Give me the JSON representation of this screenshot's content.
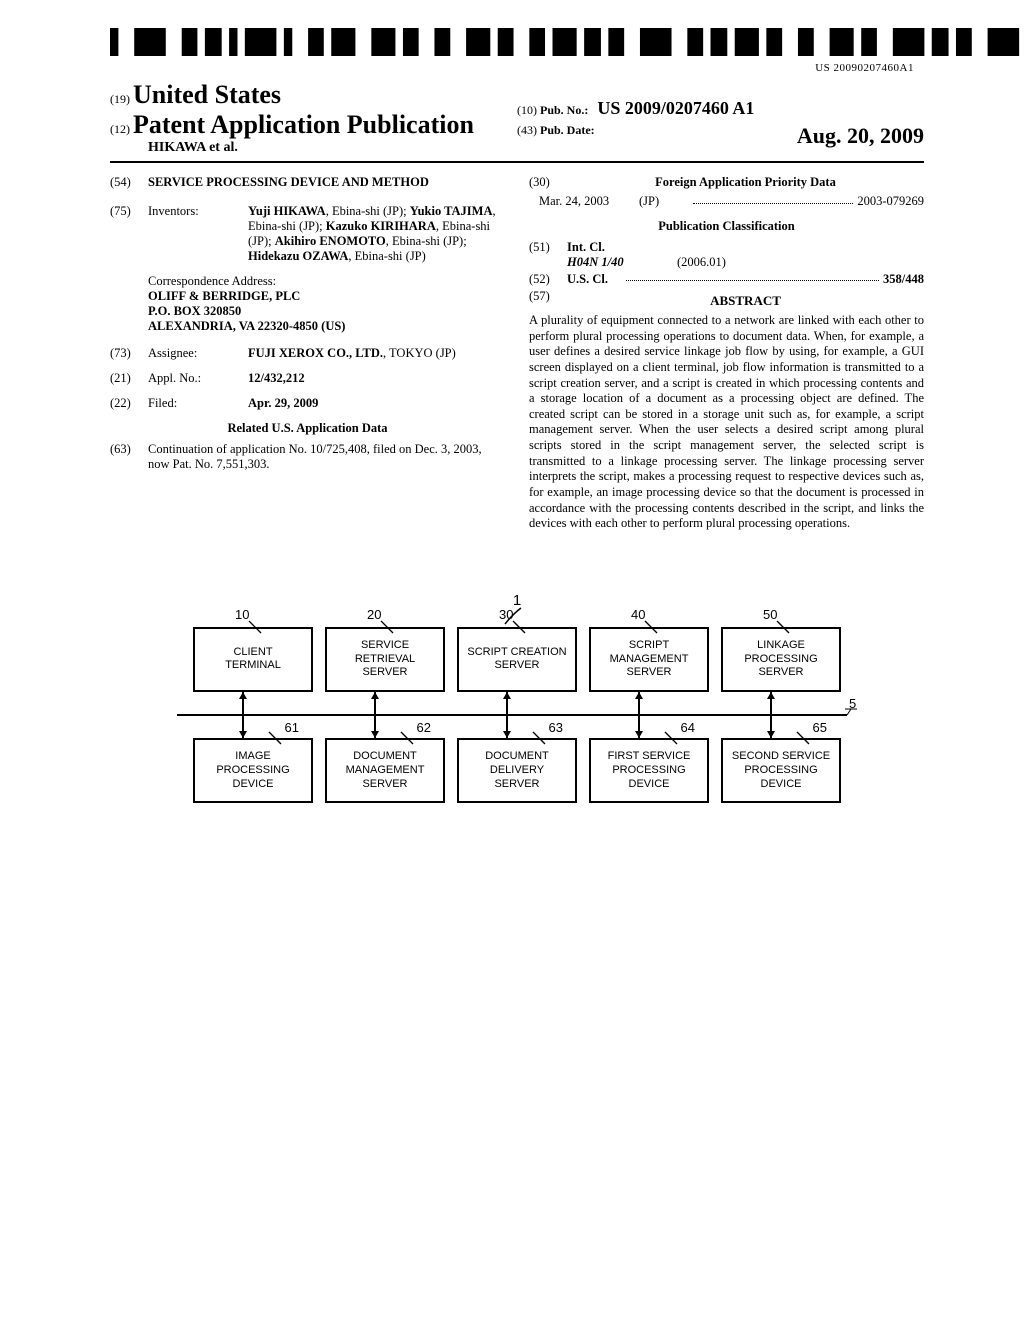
{
  "barcode_number": "US 20090207460A1",
  "header": {
    "country_code": "(19)",
    "country": "United States",
    "kind_code": "(12)",
    "kind": "Patent Application Publication",
    "author_line": "HIKAWA et al.",
    "pubno_code": "(10)",
    "pubno_label": "Pub. No.:",
    "pubno": "US 2009/0207460 A1",
    "pubdate_code": "(43)",
    "pubdate_label": "Pub. Date:",
    "pubdate": "Aug. 20, 2009"
  },
  "left": {
    "f54_code": "(54)",
    "f54_title": "SERVICE PROCESSING DEVICE AND METHOD",
    "f75_code": "(75)",
    "f75_label": "Inventors:",
    "f75_body_html": "Yuji HIKAWA, Ebina-shi (JP); Yukio TAJIMA, Ebina-shi (JP); Kazuko KIRIHARA, Ebina-shi (JP); Akihiro ENOMOTO, Ebina-shi (JP); Hidekazu OZAWA, Ebina-shi (JP)",
    "corr_label": "Correspondence Address:",
    "corr_line1": "OLIFF & BERRIDGE, PLC",
    "corr_line2": "P.O. BOX 320850",
    "corr_line3": "ALEXANDRIA, VA 22320-4850 (US)",
    "f73_code": "(73)",
    "f73_label": "Assignee:",
    "f73_body": "FUJI XEROX CO., LTD., TOKYO (JP)",
    "f21_code": "(21)",
    "f21_label": "Appl. No.:",
    "f21_val": "12/432,212",
    "f22_code": "(22)",
    "f22_label": "Filed:",
    "f22_val": "Apr. 29, 2009",
    "related_header": "Related U.S. Application Data",
    "f63_code": "(63)",
    "f63_body": "Continuation of application No. 10/725,408, filed on Dec. 3, 2003, now Pat. No. 7,551,303."
  },
  "right": {
    "f30_code": "(30)",
    "f30_header": "Foreign Application Priority Data",
    "priority_date": "Mar. 24, 2003",
    "priority_country": "(JP)",
    "priority_num": "2003-079269",
    "pubclass_header": "Publication Classification",
    "f51_code": "(51)",
    "f51_label": "Int. Cl.",
    "f51_class": "H04N 1/40",
    "f51_date": "(2006.01)",
    "f52_code": "(52)",
    "f52_label": "U.S. Cl.",
    "f52_val": "358/448",
    "f57_code": "(57)",
    "abstract_title": "ABSTRACT",
    "abstract_text": "A plurality of equipment connected to a network are linked with each other to perform plural processing operations to document data. When, for example, a user defines a desired service linkage job flow by using, for example, a GUI screen displayed on a client terminal, job flow information is transmitted to a script creation server, and a script is created in which processing contents and a storage location of a document as a processing object are defined. The created script can be stored in a storage unit such as, for example, a script management server. When the user selects a desired script among plural scripts stored in the script management server, the selected script is transmitted to a linkage processing server. The linkage processing server interprets the script, makes a processing request to respective devices such as, for example, an image processing device so that the document is processed in accordance with the processing contents described in the script, and links the devices with each other to perform plural processing operations."
  },
  "figure": {
    "main_label": "1",
    "bus_label": "5",
    "top_row": [
      {
        "num": "10",
        "label": "CLIENT\nTERMINAL"
      },
      {
        "num": "20",
        "label": "SERVICE\nRETRIEVAL SERVER"
      },
      {
        "num": "30",
        "label": "SCRIPT CREATION\nSERVER"
      },
      {
        "num": "40",
        "label": "SCRIPT\nMANAGEMENT\nSERVER"
      },
      {
        "num": "50",
        "label": "LINKAGE\nPROCESSING\nSERVER"
      }
    ],
    "bottom_row": [
      {
        "num": "61",
        "label": "IMAGE\nPROCESSING\nDEVICE"
      },
      {
        "num": "62",
        "label": "DOCUMENT\nMANAGEMENT\nSERVER"
      },
      {
        "num": "63",
        "label": "DOCUMENT\nDELIVERY\nSERVER"
      },
      {
        "num": "64",
        "label": "FIRST SERVICE\nPROCESSING\nDEVICE"
      },
      {
        "num": "65",
        "label": "SECOND SERVICE\nPROCESSING\nDEVICE"
      }
    ]
  }
}
